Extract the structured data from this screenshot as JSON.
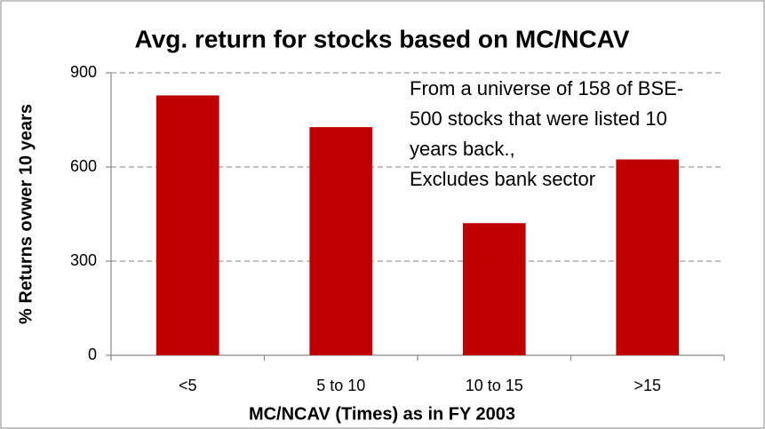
{
  "chart_data": {
    "type": "bar",
    "title": "Avg. return for stocks based on MC/NCAV",
    "x_label": "MC/NCAV (Times) as in FY 2003",
    "y_label": "% Returns ovwer 10 years",
    "annotation": [
      "From a universe of 158 of BSE-",
      "500  stocks that were listed 10",
      "years back.,",
      "Excludes bank sector"
    ],
    "categories": [
      "<5",
      "5 to 10",
      "10 to 15",
      ">15"
    ],
    "values": [
      828,
      727,
      421,
      624
    ],
    "color": "#c00000",
    "ylim": [
      0,
      900
    ],
    "yticks": [
      0,
      300,
      600,
      900
    ],
    "grid": true
  }
}
